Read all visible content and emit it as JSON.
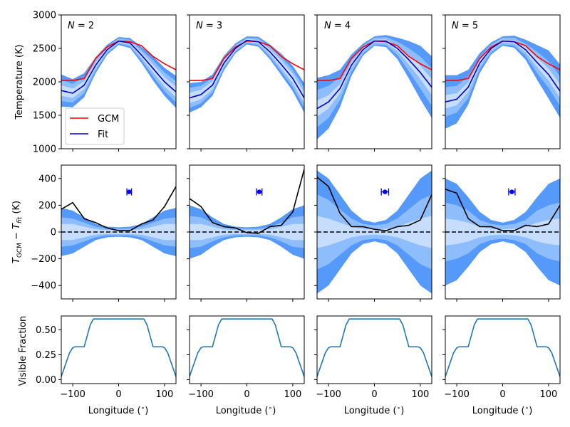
{
  "chart_data": {
    "type": "line",
    "grid": false,
    "columns": [
      {
        "label": "N = 2",
        "N_symbol": "N",
        "N_value": "2"
      },
      {
        "label": "N = 3",
        "N_symbol": "N",
        "N_value": "3"
      },
      {
        "label": "N = 4",
        "N_symbol": "N",
        "N_value": "4"
      },
      {
        "label": "N = 5",
        "N_symbol": "N",
        "N_value": "5"
      }
    ],
    "shared_x": {
      "xlabel": "Longitude ($^\\circ$)",
      "xlabel_text": "Longitude (",
      "xlabel_deg": "∘",
      "xlabel_close": ")",
      "xlim": [
        -125,
        125
      ],
      "xticks": [
        -100,
        0,
        100
      ],
      "xtick_labels": [
        "−100",
        "0",
        "100"
      ],
      "x": [
        -125,
        -100,
        -75,
        -50,
        -25,
        0,
        25,
        50,
        75,
        100,
        125
      ]
    },
    "rows": {
      "temperature": {
        "ylabel": "Temperature (K)",
        "ylim": [
          1000,
          3000
        ],
        "yticks": [
          1000,
          1500,
          2000,
          2500,
          3000
        ],
        "ytick_labels": [
          "1000",
          "1500",
          "2000",
          "2500",
          "3000"
        ],
        "legend": {
          "placement": "lower-left",
          "entries": [
            {
              "name": "GCM",
              "color": "#ff0000"
            },
            {
              "name": "Fit",
              "color": "#0000cc"
            }
          ]
        },
        "gcm": [
          2020,
          2020,
          2050,
          2350,
          2520,
          2610,
          2600,
          2540,
          2380,
          2270,
          2180
        ],
        "fits": [
          {
            "N": 2,
            "fit": [
              1870,
              1830,
              1950,
              2250,
              2480,
              2610,
              2580,
              2400,
              2200,
              2000,
              1850
            ],
            "band_1sigma": [
              80,
              70,
              60,
              40,
              25,
              20,
              25,
              40,
              60,
              70,
              80
            ],
            "band_2sigma": [
              160,
              140,
              120,
              80,
              50,
              40,
              50,
              80,
              120,
              140,
              160
            ],
            "band_3sigma": [
              240,
              210,
              180,
              120,
              75,
              60,
              75,
              120,
              180,
              210,
              240
            ]
          },
          {
            "N": 3,
            "fit": [
              1760,
              1810,
              1950,
              2280,
              2500,
              2620,
              2600,
              2450,
              2260,
              2050,
              1760
            ],
            "band_1sigma": [
              80,
              70,
              60,
              40,
              25,
              20,
              25,
              40,
              60,
              70,
              80
            ],
            "band_2sigma": [
              150,
              130,
              110,
              75,
              50,
              40,
              50,
              75,
              110,
              130,
              150
            ],
            "band_3sigma": [
              220,
              190,
              160,
              110,
              75,
              60,
              75,
              110,
              160,
              190,
              220
            ]
          },
          {
            "N": 4,
            "fit": [
              1600,
              1700,
              1900,
              2250,
              2480,
              2610,
              2610,
              2500,
              2330,
              2140,
              1920
            ],
            "band_1sigma": [
              120,
              100,
              70,
              40,
              25,
              20,
              25,
              40,
              70,
              100,
              120
            ],
            "band_2sigma": [
              280,
              240,
              170,
              100,
              60,
              50,
              60,
              100,
              170,
              240,
              280
            ],
            "band_3sigma": [
              460,
              400,
              280,
              160,
              90,
              70,
              90,
              160,
              280,
              400,
              460
            ]
          },
          {
            "N": 5,
            "fit": [
              1700,
              1740,
              1920,
              2280,
              2500,
              2610,
              2600,
              2480,
              2290,
              2110,
              1860
            ],
            "band_1sigma": [
              100,
              90,
              70,
              40,
              25,
              20,
              25,
              40,
              70,
              90,
              100
            ],
            "band_2sigma": [
              220,
              200,
              160,
              90,
              60,
              50,
              60,
              90,
              160,
              200,
              220
            ],
            "band_3sigma": [
              400,
              360,
              260,
              150,
              90,
              70,
              90,
              150,
              260,
              360,
              400
            ]
          }
        ]
      },
      "residual": {
        "ylabel_main": "T",
        "ylabel_sub1": "GCM",
        "ylabel_minus": " − ",
        "ylabel_sub2": "fit",
        "ylabel_unit": " (K)",
        "ylim": [
          -500,
          500
        ],
        "yticks": [
          -400,
          -200,
          0,
          200,
          400
        ],
        "ytick_labels": [
          "−400",
          "−200",
          "0",
          "200",
          "400"
        ],
        "zero_line": "dashed",
        "residuals": [
          {
            "N": 2,
            "values": [
              170,
              220,
              100,
              70,
              30,
              10,
              10,
              60,
              90,
              190,
              340
            ],
            "hotspot": {
              "x": 23,
              "y": 300,
              "xerr": 5
            },
            "band_1sigma": [
              60,
              60,
              40,
              20,
              15,
              15,
              15,
              20,
              40,
              60,
              60
            ],
            "band_2sigma": [
              110,
              100,
              70,
              40,
              25,
              25,
              25,
              40,
              70,
              100,
              110
            ],
            "band_3sigma": [
              180,
              160,
              110,
              60,
              40,
              35,
              40,
              60,
              110,
              160,
              180
            ]
          },
          {
            "N": 3,
            "values": [
              250,
              190,
              70,
              40,
              30,
              -5,
              -10,
              40,
              50,
              150,
              470
            ],
            "hotspot": {
              "x": 27,
              "y": 300,
              "xerr": 6
            },
            "band_1sigma": [
              60,
              60,
              40,
              20,
              15,
              15,
              15,
              20,
              40,
              60,
              60
            ],
            "band_2sigma": [
              120,
              110,
              70,
              40,
              25,
              25,
              25,
              40,
              70,
              110,
              120
            ],
            "band_3sigma": [
              200,
              170,
              110,
              60,
              40,
              35,
              40,
              60,
              110,
              170,
              200
            ]
          },
          {
            "N": 4,
            "values": [
              410,
              340,
              140,
              40,
              40,
              20,
              10,
              40,
              50,
              90,
              280
            ],
            "hotspot": {
              "x": 23,
              "y": 300,
              "xerr": 8
            },
            "band_1sigma": [
              120,
              100,
              70,
              40,
              25,
              20,
              25,
              40,
              70,
              100,
              120
            ],
            "band_2sigma": [
              280,
              240,
              170,
              100,
              60,
              50,
              60,
              100,
              170,
              240,
              280
            ],
            "band_3sigma": [
              460,
              400,
              280,
              160,
              90,
              70,
              90,
              160,
              280,
              400,
              460
            ]
          },
          {
            "N": 5,
            "values": [
              320,
              290,
              100,
              40,
              40,
              10,
              10,
              50,
              40,
              60,
              200
            ],
            "hotspot": {
              "x": 20,
              "y": 300,
              "xerr": 7
            },
            "band_1sigma": [
              100,
              90,
              70,
              40,
              25,
              20,
              25,
              40,
              70,
              90,
              100
            ],
            "band_2sigma": [
              220,
              200,
              160,
              90,
              60,
              50,
              60,
              90,
              160,
              200,
              220
            ],
            "band_3sigma": [
              400,
              360,
              260,
              150,
              90,
              70,
              90,
              150,
              260,
              360,
              400
            ]
          }
        ]
      },
      "visible": {
        "ylabel": "Visible Fraction",
        "ylim": [
          -0.04,
          0.64
        ],
        "yticks": [
          0.0,
          0.25,
          0.5
        ],
        "ytick_labels": [
          "0.00",
          "0.25",
          "0.50"
        ],
        "x": [
          -125,
          -107,
          -100,
          -95,
          -85,
          -75,
          -62,
          -55,
          55,
          62,
          75,
          85,
          95,
          100,
          107,
          125
        ],
        "values": [
          0.03,
          0.27,
          0.32,
          0.33,
          0.33,
          0.33,
          0.55,
          0.61,
          0.61,
          0.55,
          0.33,
          0.33,
          0.33,
          0.32,
          0.27,
          0.03
        ]
      }
    },
    "colors": {
      "gcm": "#ff0000",
      "fit": "#0000cc",
      "residual": "#000000",
      "hotspot": "#0000ff",
      "visible": "#1f77b4",
      "band_1sigma": "#c6ddfd",
      "band_2sigma": "#8dbdfc",
      "band_3sigma": "#5599fb"
    }
  }
}
